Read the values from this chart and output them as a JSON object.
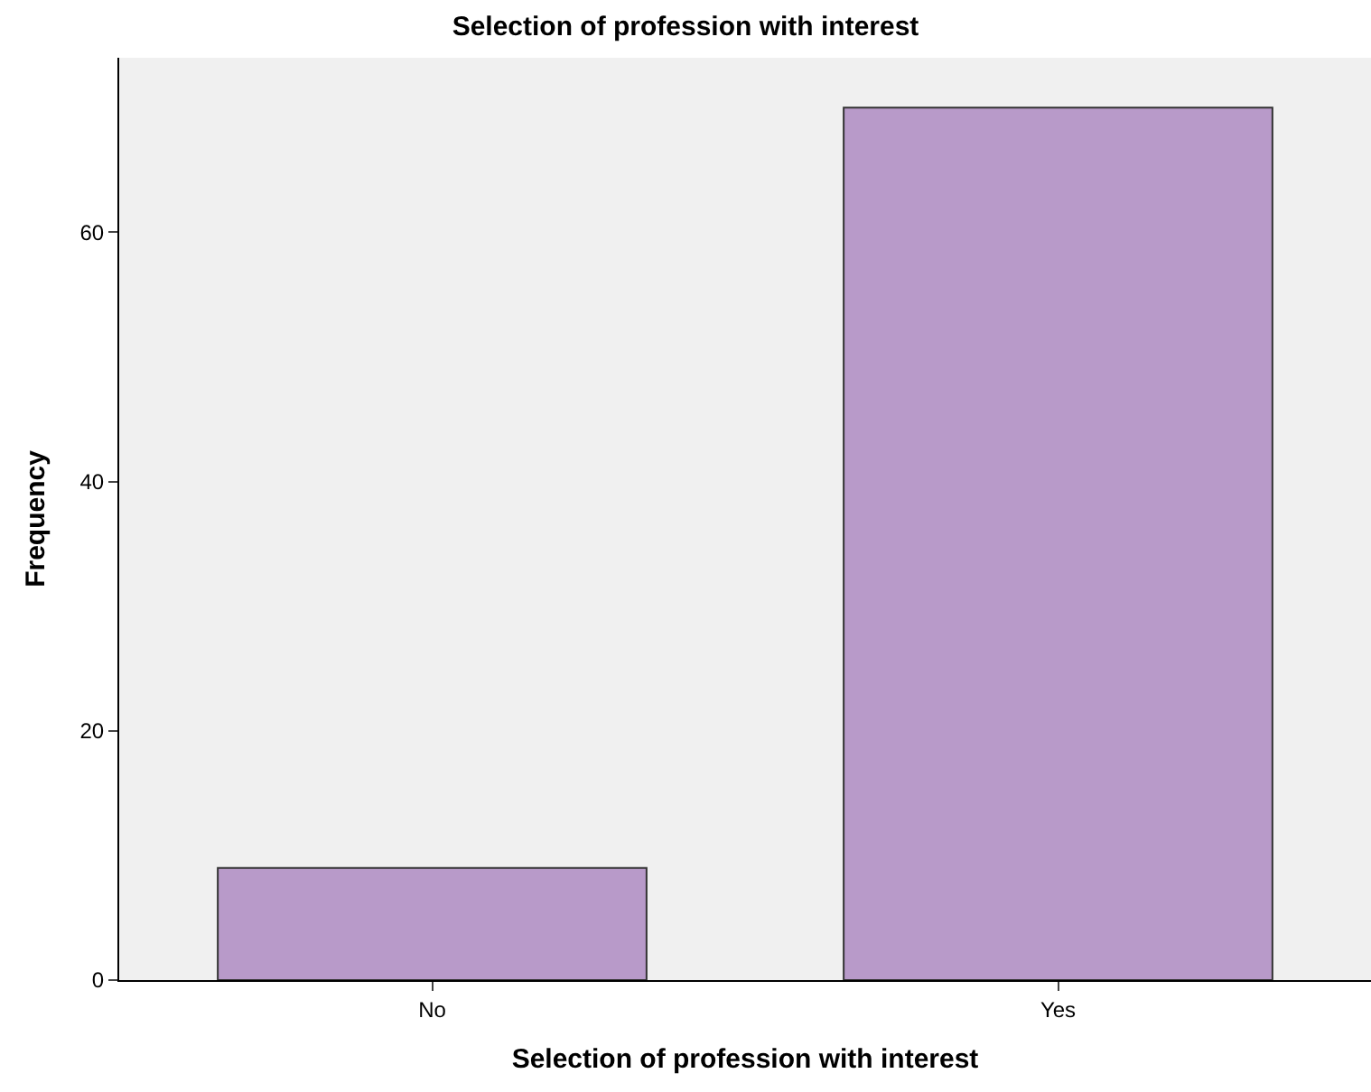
{
  "chart_data": {
    "type": "bar",
    "title": "Selection of profession with interest",
    "xlabel": "Selection of profession with interest",
    "ylabel": "Frequency",
    "categories": [
      "No",
      "Yes"
    ],
    "values": [
      9,
      70
    ],
    "color": "#b89ac9",
    "ylim": [
      0,
      74
    ],
    "yticks": [
      0,
      20,
      40,
      60
    ],
    "grid": false
  }
}
